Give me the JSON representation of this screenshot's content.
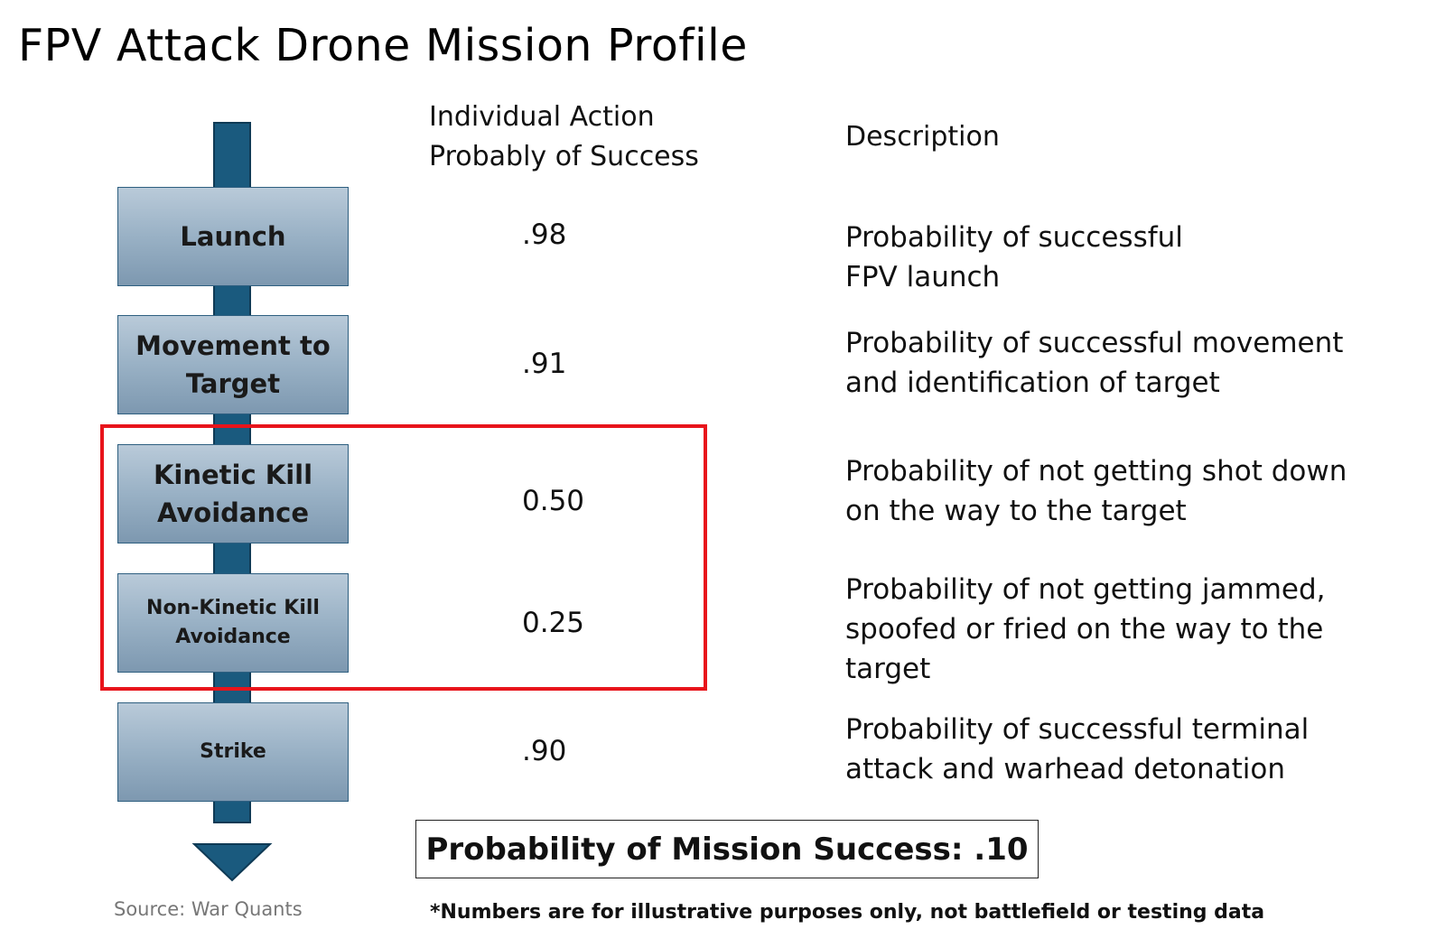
{
  "title": "FPV Attack Drone Mission Profile",
  "columns": {
    "probability_header": [
      "Individual Action",
      "Probably of Success"
    ],
    "description_header": "Description"
  },
  "stages": [
    {
      "label": [
        "Launch"
      ],
      "probability": ".98",
      "description": [
        "Probability of successful",
        "FPV launch"
      ]
    },
    {
      "label": [
        "Movement to",
        "Target"
      ],
      "probability": ".91",
      "description": [
        "Probability of successful movement",
        "and identification of target"
      ]
    },
    {
      "label": [
        "Kinetic Kill",
        "Avoidance"
      ],
      "probability": "0.50",
      "description": [
        "Probability of not getting shot down",
        "on the way to the target"
      ]
    },
    {
      "label": [
        "Non-Kinetic Kill",
        "Avoidance"
      ],
      "probability": "0.25",
      "description": [
        "Probability of not getting jammed,",
        "spoofed or fried on the way to the",
        "target"
      ]
    },
    {
      "label": [
        "Strike"
      ],
      "probability": ".90",
      "description": [
        "Probability of successful terminal",
        "attack and warhead detonation"
      ]
    }
  ],
  "summary": "Probability of Mission Success: .10",
  "source": "Source: War Quants",
  "footnote": "*Numbers are for illustrative purposes only, not battlefield or testing data",
  "colors": {
    "arrow": "#1a5a7e",
    "box_top": "#b9cad9",
    "box_bottom": "#7d98b0",
    "highlight": "#e8141b"
  }
}
